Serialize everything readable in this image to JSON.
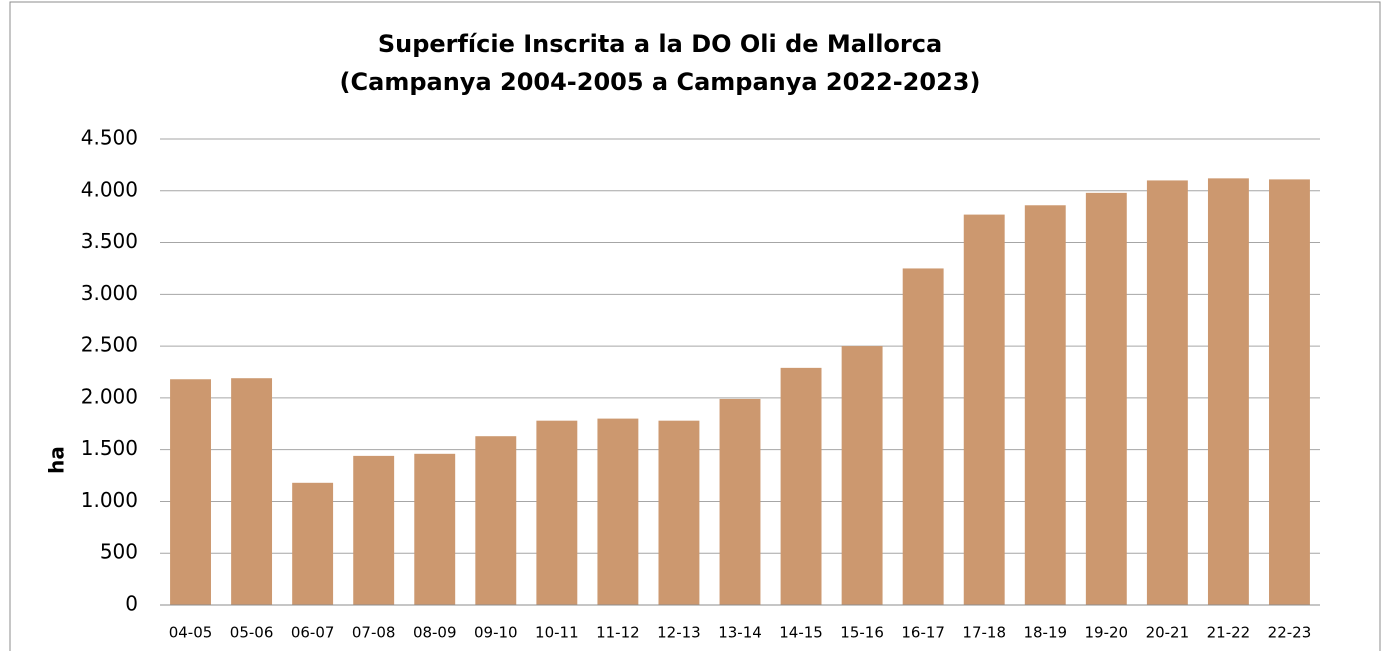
{
  "chart_data": {
    "type": "bar",
    "title": "Superfície Inscrita a la DO Oli de Mallorca",
    "subtitle": "(Campanya 2004-2005 a Campanya 2022-2023)",
    "y_label": "ha",
    "categories": [
      "04-05",
      "05-06",
      "06-07",
      "07-08",
      "08-09",
      "09-10",
      "10-11",
      "11-12",
      "12-13",
      "13-14",
      "14-15",
      "15-16",
      "16-17",
      "17-18",
      "18-19",
      "19-20",
      "20-21",
      "21-22",
      "22-23"
    ],
    "values": [
      2180,
      2190,
      1180,
      1440,
      1460,
      1630,
      1780,
      1800,
      1780,
      1990,
      2290,
      2500,
      3250,
      3770,
      3860,
      3980,
      4100,
      4120,
      4110
    ],
    "color": "#cc986f",
    "ylim": [
      0,
      4500
    ],
    "yticks": [
      0,
      500,
      {
        "value": 1000,
        "label": "1.000"
      },
      {
        "value": 1500,
        "label": "1.500"
      },
      {
        "value": 2000,
        "label": "2.000"
      },
      {
        "value": 2500,
        "label": "2.500"
      },
      {
        "value": 3000,
        "label": "3.000"
      },
      {
        "value": 3500,
        "label": "3.500"
      },
      {
        "value": 4000,
        "label": "4.000"
      },
      {
        "value": 4500,
        "label": "4.500"
      }
    ],
    "grid": true
  }
}
